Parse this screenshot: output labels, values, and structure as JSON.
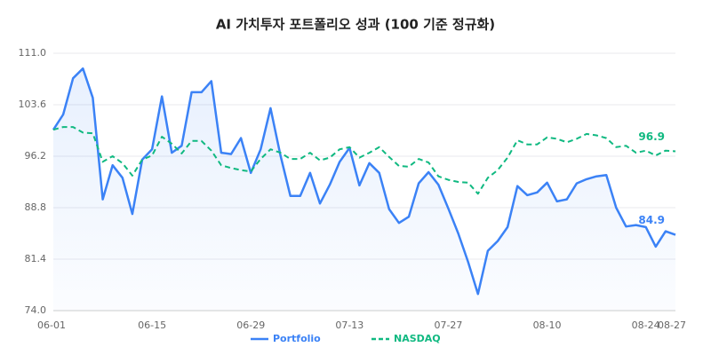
{
  "chart_data": {
    "type": "line",
    "title": "AI 가치투자 포트폴리오 성과 (100 기준 정규화)",
    "categories": [
      "06-01",
      null,
      null,
      null,
      null,
      null,
      null,
      null,
      null,
      null,
      "06-15",
      null,
      null,
      null,
      null,
      null,
      null,
      null,
      null,
      null,
      "06-29",
      null,
      null,
      null,
      null,
      null,
      null,
      null,
      null,
      null,
      "07-13",
      null,
      null,
      null,
      null,
      null,
      null,
      null,
      null,
      null,
      "07-27",
      null,
      null,
      null,
      null,
      null,
      null,
      null,
      null,
      null,
      "08-10",
      null,
      null,
      null,
      null,
      null,
      null,
      null,
      null,
      null,
      "08-24",
      null,
      null,
      "08-27"
    ],
    "series": [
      {
        "name": "Portfolio",
        "color": "#3b82f6",
        "area": true,
        "dashed": false,
        "values": [
          100.0,
          102.2,
          107.4,
          108.8,
          104.6,
          90.0,
          94.9,
          93.1,
          87.9,
          95.7,
          97.2,
          104.8,
          96.7,
          97.7,
          105.4,
          105.4,
          107.0,
          96.7,
          96.5,
          98.8,
          93.8,
          97.2,
          103.1,
          96.3,
          90.5,
          90.5,
          93.8,
          89.4,
          92.1,
          95.4,
          97.4,
          92.0,
          95.2,
          93.8,
          88.6,
          86.6,
          87.5,
          92.3,
          93.9,
          92.1,
          88.7,
          85.1,
          81.0,
          76.4,
          82.6,
          84.0,
          86.0,
          91.9,
          90.6,
          91.0,
          92.4,
          89.7,
          90.0,
          92.3,
          92.9,
          93.3,
          93.5,
          88.8,
          86.1,
          86.3,
          86.0,
          83.2,
          85.4,
          84.9
        ]
      },
      {
        "name": "NASDAQ",
        "color": "#10b981",
        "area": false,
        "dashed": true,
        "values": [
          100.0,
          100.4,
          100.4,
          99.6,
          99.5,
          95.4,
          96.2,
          95.2,
          93.4,
          95.7,
          96.3,
          99.0,
          98.0,
          96.6,
          98.4,
          98.4,
          97.0,
          94.9,
          94.5,
          94.2,
          94.0,
          95.8,
          97.2,
          96.7,
          95.8,
          95.8,
          96.7,
          95.6,
          96.0,
          97.2,
          97.5,
          96.0,
          96.7,
          97.5,
          96.1,
          94.8,
          94.7,
          95.8,
          95.3,
          93.3,
          92.8,
          92.5,
          92.4,
          90.8,
          93.1,
          94.2,
          96.0,
          98.5,
          97.9,
          97.9,
          98.9,
          98.7,
          98.2,
          98.7,
          99.4,
          99.2,
          98.8,
          97.5,
          97.7,
          96.7,
          97.0,
          96.3,
          97.0,
          96.9
        ]
      }
    ],
    "ylim": [
      74.0,
      111.0
    ],
    "yticks": [
      {
        "value": 74.0,
        "label": "74.0"
      },
      81.4,
      88.8,
      96.2,
      103.6,
      {
        "value": 111.0,
        "label": "111.0"
      }
    ],
    "grid": true,
    "legend": "bottom"
  }
}
